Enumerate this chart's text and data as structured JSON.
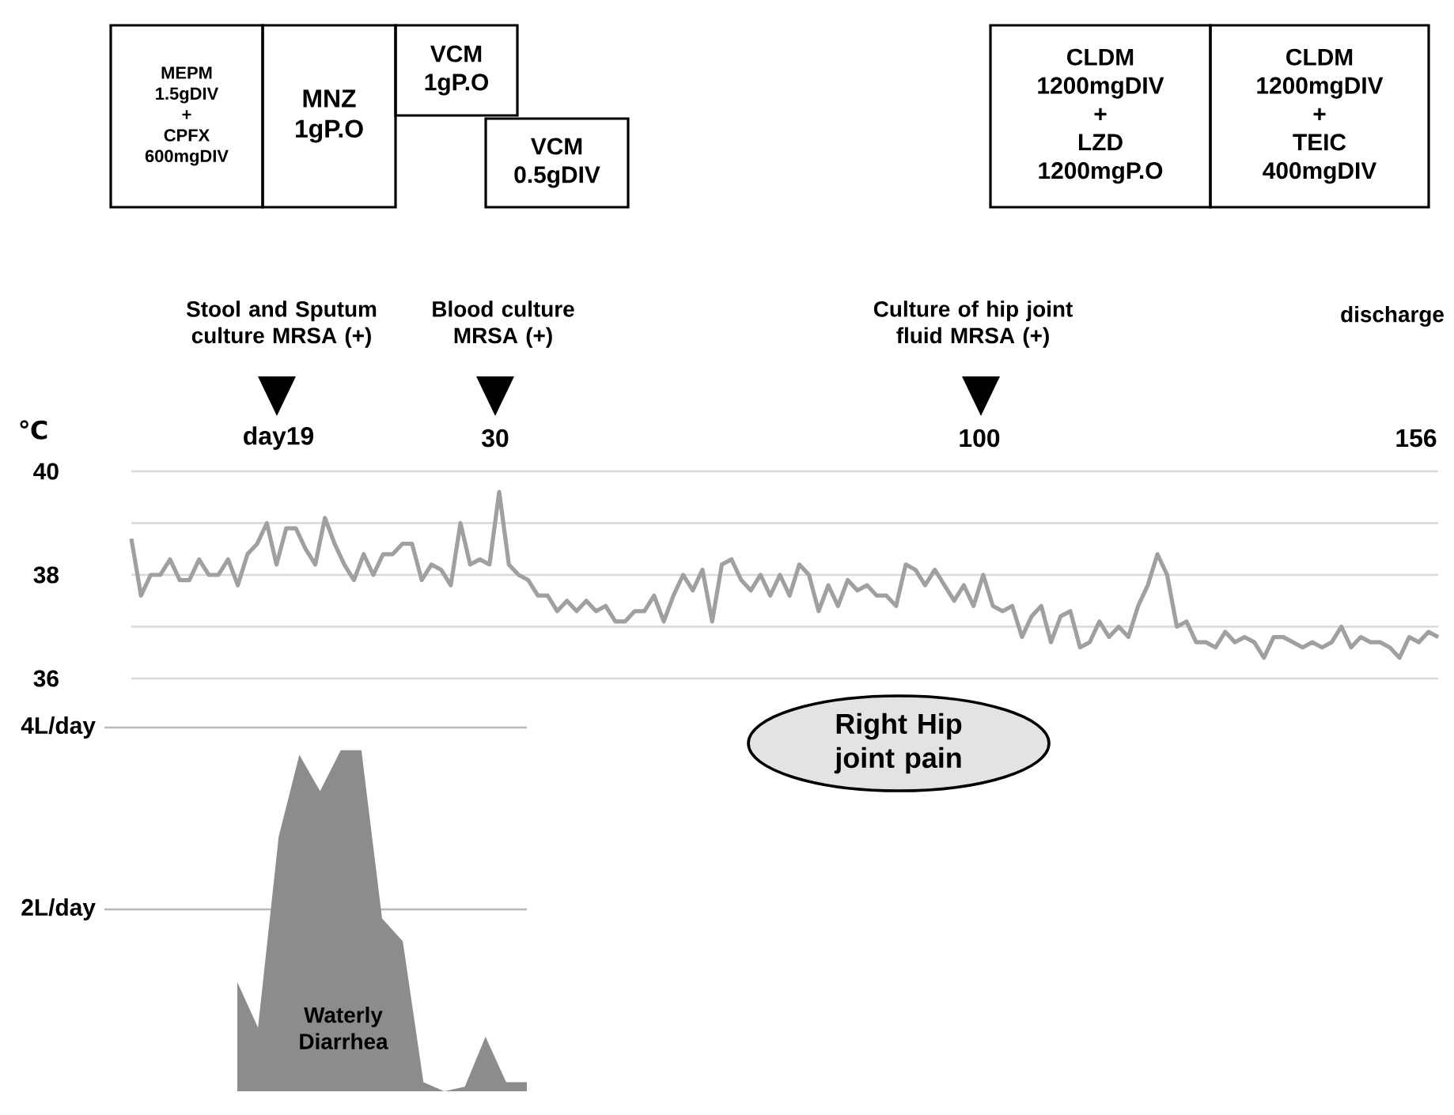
{
  "chart_data": [
    {
      "type": "line",
      "ylabel": "℃",
      "color": "#a0a0a0",
      "ylim": [
        36,
        40
      ],
      "yticks": [
        36,
        {
          "value": 37,
          "label": null
        },
        38,
        {
          "value": 39,
          "label": null
        },
        40
      ],
      "grid": "y",
      "tick_labels": "y",
      "categories": [
        null,
        null,
        null,
        null,
        null,
        null,
        null,
        null,
        null,
        null,
        null,
        null,
        null,
        null,
        null,
        null,
        null,
        null,
        null,
        null,
        null,
        null,
        null,
        null,
        null,
        null,
        null,
        null,
        null,
        null,
        null,
        null,
        null,
        null,
        null,
        null,
        null,
        null,
        null,
        null,
        null,
        null,
        null,
        null,
        null,
        null,
        null,
        null,
        null,
        null,
        null,
        null,
        null,
        null,
        null,
        null,
        null,
        null,
        null,
        null,
        null,
        null,
        null,
        null,
        null,
        null,
        null,
        null,
        null,
        null,
        null,
        null,
        null,
        null,
        null,
        null,
        null,
        null,
        null,
        null,
        null,
        null,
        null,
        null,
        null,
        null,
        null,
        null,
        null,
        null,
        null,
        null,
        null,
        null,
        null,
        null,
        null,
        null,
        null,
        null,
        null,
        null,
        null,
        null,
        null,
        null,
        null,
        null,
        null,
        null,
        null,
        null,
        null,
        null,
        null,
        null,
        null,
        null,
        null,
        null,
        null,
        null,
        null,
        null,
        null,
        null,
        null,
        null,
        null,
        null,
        null,
        null,
        null,
        null,
        null,
        null
      ],
      "values": [
        38.7,
        37.6,
        38.0,
        38.0,
        38.3,
        37.9,
        37.9,
        38.3,
        38.0,
        38.0,
        38.3,
        37.8,
        38.4,
        38.6,
        39.0,
        38.2,
        38.9,
        38.9,
        38.5,
        38.2,
        39.1,
        38.6,
        38.2,
        37.9,
        38.4,
        38.0,
        38.4,
        38.4,
        38.6,
        38.6,
        37.9,
        38.2,
        38.1,
        37.8,
        39.0,
        38.2,
        38.3,
        38.2,
        39.6,
        38.2,
        38.0,
        37.9,
        37.6,
        37.6,
        37.3,
        37.5,
        37.3,
        37.5,
        37.3,
        37.4,
        37.1,
        37.1,
        37.3,
        37.3,
        37.6,
        37.1,
        37.6,
        38.0,
        37.7,
        38.1,
        37.1,
        38.2,
        38.3,
        37.9,
        37.7,
        38.0,
        37.6,
        38.0,
        37.6,
        38.2,
        38.0,
        37.3,
        37.8,
        37.4,
        37.9,
        37.7,
        37.8,
        37.6,
        37.6,
        37.4,
        38.2,
        38.1,
        37.8,
        38.1,
        37.8,
        37.5,
        37.8,
        37.4,
        38.0,
        37.4,
        37.3,
        37.4,
        36.8,
        37.2,
        37.4,
        36.7,
        37.2,
        37.3,
        36.6,
        36.7,
        37.1,
        36.8,
        37.0,
        36.8,
        37.4,
        37.8,
        38.4,
        38.0,
        37.0,
        37.1,
        36.7,
        36.7,
        36.6,
        36.9,
        36.7,
        36.8,
        36.7,
        36.4,
        36.8,
        36.8,
        36.7,
        36.6,
        36.7,
        36.6,
        36.7,
        37.0,
        36.6,
        36.8,
        36.7,
        36.7,
        36.6,
        36.4,
        36.8,
        36.7,
        36.9,
        36.8
      ],
      "annotations": [
        "MEPM",
        "1.5gDIV",
        "+",
        "CPFX",
        "600mgDIV",
        "MNZ",
        "1gP.O",
        "VCM",
        "1gP.O",
        "VCM",
        "0.5gDIV",
        "CLDM",
        "1200mgDIV",
        "+",
        "LZD",
        "1200mgP.O",
        "CLDM",
        "1200mgDIV",
        "+",
        "TEIC",
        "400mgDIV",
        "Stool and Sputum culture MRSA (+)",
        "day19",
        "Blood culture MRSA (+)",
        "30",
        "Culture of hip joint fluid MRSA (+)",
        "100",
        "discharge",
        "156",
        "Right Hip joint pain"
      ]
    },
    {
      "type": "area",
      "color": "#8c8c8c",
      "ylim": [
        0,
        4
      ],
      "yticks": [
        {
          "value": 2,
          "label": "2L/day"
        },
        {
          "value": 4,
          "label": "4L/day"
        }
      ],
      "grid": "y",
      "tick_labels": "y",
      "categories": [
        null,
        null,
        null,
        null,
        null,
        null,
        null,
        null,
        null,
        null,
        null,
        null,
        null,
        null,
        null
      ],
      "values": [
        1.2,
        0.7,
        2.8,
        3.7,
        3.3,
        3.75,
        3.75,
        1.9,
        1.65,
        0.1,
        0,
        0.05,
        0.6,
        0.1,
        0.1
      ],
      "annotations": [
        "Waterly Diarrhea"
      ]
    }
  ]
}
